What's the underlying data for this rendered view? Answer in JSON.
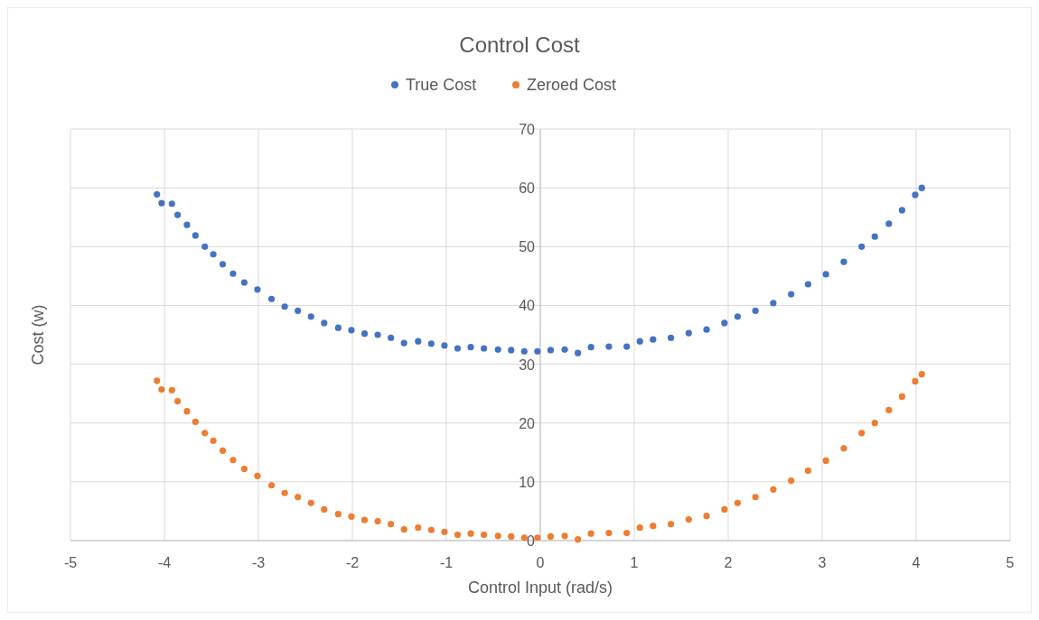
{
  "chart_data": {
    "type": "scatter",
    "title": "Control Cost",
    "xlabel": "Control Input (rad/s)",
    "ylabel": "Cost (w)",
    "x": [
      -4.08,
      -4.03,
      -3.92,
      -3.86,
      -3.76,
      -3.67,
      -3.57,
      -3.48,
      -3.38,
      -3.27,
      -3.15,
      -3.01,
      -2.86,
      -2.72,
      -2.58,
      -2.44,
      -2.3,
      -2.15,
      -2.01,
      -1.87,
      -1.73,
      -1.59,
      -1.45,
      -1.3,
      -1.16,
      -1.02,
      -0.88,
      -0.74,
      -0.6,
      -0.45,
      -0.31,
      -0.17,
      -0.03,
      0.11,
      0.26,
      0.4,
      0.54,
      0.73,
      0.92,
      1.06,
      1.2,
      1.39,
      1.58,
      1.77,
      1.96,
      2.1,
      2.29,
      2.48,
      2.67,
      2.85,
      3.04,
      3.23,
      3.42,
      3.56,
      3.71,
      3.85,
      3.99,
      4.06
    ],
    "series": [
      {
        "name": "True Cost",
        "color": "#4472c4",
        "values": [
          58.9,
          57.4,
          57.3,
          55.4,
          53.7,
          51.9,
          50.0,
          48.7,
          47.0,
          45.4,
          43.9,
          42.7,
          41.1,
          39.8,
          39.1,
          38.1,
          37.0,
          36.2,
          35.8,
          35.2,
          35.0,
          34.5,
          33.6,
          33.9,
          33.5,
          33.2,
          32.7,
          32.9,
          32.7,
          32.5,
          32.4,
          32.2,
          32.2,
          32.4,
          32.5,
          31.9,
          32.9,
          33.0,
          33.0,
          33.9,
          34.2,
          34.5,
          35.3,
          35.9,
          37.0,
          38.1,
          39.1,
          40.4,
          41.9,
          43.6,
          45.3,
          47.4,
          50.0,
          51.7,
          53.9,
          56.2,
          58.8,
          60.0
        ]
      },
      {
        "name": "Zeroed Cost",
        "color": "#ed7d31",
        "values": [
          27.2,
          25.7,
          25.6,
          23.7,
          22.0,
          20.2,
          18.3,
          17.0,
          15.3,
          13.7,
          12.2,
          11.0,
          9.4,
          8.1,
          7.4,
          6.4,
          5.3,
          4.5,
          4.1,
          3.5,
          3.3,
          2.8,
          1.9,
          2.2,
          1.8,
          1.5,
          1.0,
          1.2,
          1.0,
          0.8,
          0.7,
          0.5,
          0.5,
          0.7,
          0.8,
          0.2,
          1.2,
          1.3,
          1.3,
          2.2,
          2.5,
          2.8,
          3.6,
          4.2,
          5.3,
          6.4,
          7.4,
          8.7,
          10.2,
          11.9,
          13.6,
          15.7,
          18.3,
          20.0,
          22.2,
          24.5,
          27.1,
          28.3
        ]
      }
    ],
    "xlim": [
      -5,
      5
    ],
    "xticks": [
      -5,
      -4,
      -3,
      -2,
      -1,
      0,
      1,
      2,
      3,
      4,
      5
    ],
    "ylim": [
      0,
      70
    ],
    "yticks": [
      0,
      10,
      20,
      30,
      40,
      50,
      60,
      70
    ],
    "grid": true,
    "legend": "top",
    "marker": "circle"
  }
}
